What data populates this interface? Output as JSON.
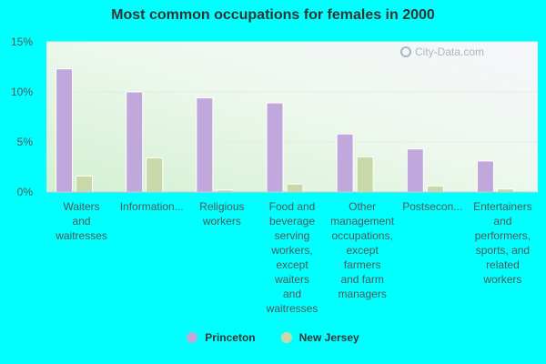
{
  "chart_data": {
    "type": "bar",
    "title": "Most common occupations for females in 2000",
    "xlabel": "",
    "ylabel": "",
    "ylim": [
      0,
      15
    ],
    "yticks": [
      "0%",
      "5%",
      "10%",
      "15%"
    ],
    "categories": [
      [
        "Waiters",
        "and",
        "waitresses"
      ],
      [
        "Information..."
      ],
      [
        "Religious",
        "workers"
      ],
      [
        "Food and",
        "beverage",
        "serving",
        "workers,",
        "except",
        "waiters",
        "and",
        "waitresses"
      ],
      [
        "Other",
        "management",
        "occupations,",
        "except",
        "farmers",
        "and farm",
        "managers"
      ],
      [
        "Postsecon..."
      ],
      [
        "Entertainers",
        "and",
        "performers,",
        "sports, and",
        "related",
        "workers"
      ]
    ],
    "series": [
      {
        "name": "Princeton",
        "color": "#c0a8dc",
        "values": [
          12.3,
          10.0,
          9.4,
          8.9,
          5.8,
          4.3,
          3.1
        ]
      },
      {
        "name": "New Jersey",
        "color": "#c8d8a8",
        "values": [
          1.6,
          3.4,
          0.2,
          0.8,
          3.5,
          0.6,
          0.3
        ]
      }
    ],
    "watermark": "City-Data.com"
  }
}
